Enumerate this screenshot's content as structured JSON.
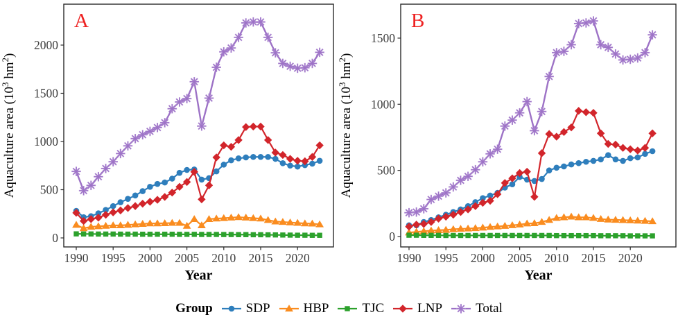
{
  "figure": {
    "xlabel": "Year",
    "ylabel": {
      "pre": "Aquaculture area (10",
      "sup1": "3",
      "mid": " hm",
      "sup2": "2",
      "post": ")"
    }
  },
  "legend": {
    "title": "Group",
    "items": [
      "SDP",
      "HBP",
      "TJC",
      "LNP",
      "Total"
    ]
  },
  "colors": {
    "SDP": "#2e7ebc",
    "HBP": "#fa8c1f",
    "TJC": "#2ca12c",
    "LNP": "#d2252b",
    "Total": "#9d72c6",
    "total_marker_halo": "#b493d6",
    "panel_letter": "#ee2222",
    "axis_line": "#2b2b2b",
    "tick_text": "#3f3f3f",
    "label_text": "#000000"
  },
  "chart_data": [
    {
      "type": "line",
      "panel_label": "A",
      "xlabel": "Year",
      "ylabel": "Aquaculture area (10^3 hm^2)",
      "x": [
        1990,
        1991,
        1992,
        1993,
        1994,
        1995,
        1996,
        1997,
        1998,
        1999,
        2000,
        2001,
        2002,
        2003,
        2004,
        2005,
        2006,
        2007,
        2008,
        2009,
        2010,
        2011,
        2012,
        2013,
        2014,
        2015,
        2016,
        2017,
        2018,
        2019,
        2020,
        2021,
        2022,
        2023
      ],
      "xticks": [
        1990,
        1995,
        2000,
        2005,
        2010,
        2015,
        2020
      ],
      "yticks": [
        0,
        500,
        1000,
        1500,
        2000
      ],
      "ylim": [
        0,
        2420
      ],
      "grid": false,
      "legend_position": "bottom",
      "series": [
        {
          "name": "SDP",
          "marker": "circle",
          "values": [
            280,
            215,
            225,
            255,
            290,
            330,
            370,
            405,
            440,
            485,
            530,
            560,
            575,
            615,
            675,
            705,
            710,
            605,
            620,
            690,
            760,
            805,
            825,
            835,
            840,
            840,
            840,
            820,
            775,
            750,
            740,
            755,
            770,
            800
          ]
        },
        {
          "name": "HBP",
          "marker": "triangle",
          "values": [
            135,
            100,
            115,
            120,
            125,
            130,
            130,
            135,
            140,
            145,
            150,
            150,
            152,
            155,
            155,
            125,
            195,
            130,
            195,
            200,
            205,
            210,
            215,
            210,
            205,
            200,
            185,
            170,
            165,
            160,
            155,
            150,
            148,
            140
          ]
        },
        {
          "name": "TJC",
          "marker": "square",
          "values": [
            42,
            41,
            41,
            40,
            40,
            40,
            39,
            39,
            39,
            38,
            38,
            38,
            38,
            38,
            37,
            37,
            37,
            36,
            36,
            36,
            35,
            35,
            34,
            34,
            33,
            33,
            32,
            31,
            30,
            29,
            28,
            28,
            27,
            27
          ]
        },
        {
          "name": "LNP",
          "marker": "diamond",
          "values": [
            260,
            175,
            195,
            210,
            240,
            265,
            285,
            310,
            330,
            355,
            375,
            395,
            425,
            470,
            530,
            580,
            685,
            400,
            545,
            835,
            960,
            945,
            1015,
            1150,
            1155,
            1155,
            1015,
            885,
            860,
            820,
            800,
            795,
            840,
            960
          ]
        },
        {
          "name": "Total",
          "marker": "asterisk",
          "values": [
            690,
            490,
            545,
            635,
            720,
            790,
            875,
            955,
            1030,
            1070,
            1105,
            1145,
            1195,
            1340,
            1410,
            1445,
            1620,
            1160,
            1450,
            1770,
            1930,
            1970,
            2080,
            2230,
            2240,
            2240,
            2080,
            1920,
            1810,
            1780,
            1760,
            1765,
            1810,
            1925
          ]
        }
      ]
    },
    {
      "type": "line",
      "panel_label": "B",
      "xlabel": "Year",
      "ylabel": "Aquaculture area (10^3 hm^2)",
      "x": [
        1990,
        1991,
        1992,
        1993,
        1994,
        1995,
        1996,
        1997,
        1998,
        1999,
        2000,
        2001,
        2002,
        2003,
        2004,
        2005,
        2006,
        2007,
        2008,
        2009,
        2010,
        2011,
        2012,
        2013,
        2014,
        2015,
        2016,
        2017,
        2018,
        2019,
        2020,
        2021,
        2022,
        2023
      ],
      "xticks": [
        1990,
        1995,
        2000,
        2005,
        2010,
        2015,
        2020
      ],
      "yticks": [
        0,
        500,
        1000,
        1500
      ],
      "ylim": [
        0,
        1750
      ],
      "grid": false,
      "legend_position": "bottom",
      "series": [
        {
          "name": "SDP",
          "marker": "circle",
          "values": [
            85,
            85,
            110,
            125,
            145,
            165,
            185,
            205,
            230,
            260,
            290,
            310,
            330,
            370,
            395,
            450,
            430,
            420,
            435,
            500,
            520,
            530,
            545,
            555,
            565,
            572,
            583,
            615,
            583,
            572,
            592,
            598,
            625,
            645
          ]
        },
        {
          "name": "HBP",
          "marker": "triangle",
          "values": [
            30,
            35,
            40,
            45,
            48,
            50,
            55,
            58,
            60,
            63,
            67,
            72,
            76,
            80,
            85,
            90,
            98,
            100,
            110,
            125,
            140,
            145,
            150,
            145,
            145,
            140,
            132,
            128,
            126,
            124,
            122,
            120,
            118,
            115
          ]
        },
        {
          "name": "TJC",
          "marker": "square",
          "values": [
            10,
            10,
            9,
            9,
            9,
            8,
            8,
            8,
            8,
            8,
            8,
            8,
            8,
            8,
            8,
            8,
            8,
            8,
            8,
            8,
            7,
            7,
            7,
            7,
            7,
            7,
            6,
            6,
            6,
            6,
            5,
            5,
            5,
            5
          ]
        },
        {
          "name": "LNP",
          "marker": "diamond",
          "values": [
            75,
            90,
            95,
            110,
            135,
            150,
            165,
            185,
            205,
            230,
            255,
            270,
            320,
            405,
            440,
            480,
            490,
            300,
            630,
            775,
            755,
            790,
            825,
            950,
            940,
            935,
            780,
            700,
            695,
            670,
            660,
            650,
            670,
            780
          ]
        },
        {
          "name": "Total",
          "marker": "asterisk",
          "values": [
            180,
            185,
            210,
            280,
            305,
            330,
            375,
            425,
            455,
            505,
            565,
            625,
            660,
            835,
            880,
            935,
            1020,
            800,
            945,
            1210,
            1390,
            1400,
            1450,
            1610,
            1615,
            1630,
            1450,
            1430,
            1380,
            1335,
            1340,
            1350,
            1390,
            1525
          ]
        }
      ]
    }
  ]
}
